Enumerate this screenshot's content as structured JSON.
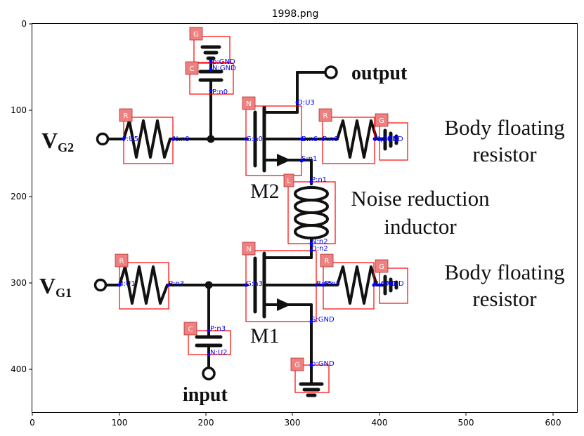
{
  "window": {
    "title": "1998.png",
    "x_ticks": [
      "0",
      "100",
      "200",
      "300",
      "400",
      "500",
      "600"
    ],
    "y_ticks": [
      "0",
      "100",
      "200",
      "300",
      "400"
    ]
  },
  "circuit": {
    "labels": {
      "output": "output",
      "input": "input",
      "vg2": "V",
      "vg2_sub": "G2",
      "vg1": "V",
      "vg1_sub": "G1",
      "m2": "M2",
      "m1": "M1",
      "body_floating_1_line1": "Body floating",
      "body_floating_1_line2": "resistor",
      "noise_line1": "Noise reduction",
      "noise_line2": "inductor",
      "body_floating_2_line1": "Body floating",
      "body_floating_2_line2": "resistor"
    },
    "component_tags": {
      "g_top": "G",
      "c_top": "C",
      "r_vg2": "R",
      "n_m2": "N",
      "r_body2": "R",
      "g_body2": "G",
      "l_noise": "L",
      "r_vg1": "R",
      "n_m1": "N",
      "r_body1": "R",
      "g_body1": "G",
      "c_bottom": "C",
      "g_bottom": "G"
    },
    "pin_labels": {
      "g_top_p": "p:GND",
      "g_top_n": "N:GND",
      "c_top_p": "P:n0",
      "d_m2": "D:U3",
      "r_vg2_p": "P:U5",
      "r_vg2_n": "N:n0",
      "g_m2": "G:n0",
      "b_m2": "B:n6",
      "r_body2_p": "P:n6",
      "r_body2_n": "N:GND",
      "g_body2": "p:GND",
      "s_m2": "S:n1",
      "l_p": "P:n1",
      "l_n": "N:n2",
      "d_m1": "D:n2",
      "r_vg1_n": "N:U1",
      "r_vg1_p": "P:n3",
      "g_m1": "G:n3",
      "b_m1": "B:n5",
      "r_body1_p": "P:n5",
      "r_body1_n": "N:GND",
      "g_body1": "p:GND",
      "s_m1": "S:GND",
      "c_bot_p": "P:n3",
      "c_bot_n": "N:U2",
      "g_bot": "p:GND"
    }
  }
}
